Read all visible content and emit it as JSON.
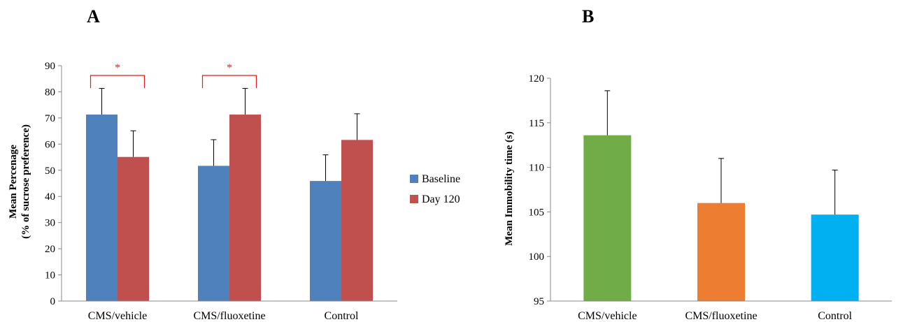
{
  "chart_data": [
    {
      "type": "bar",
      "panel_label": "A",
      "categories": [
        "CMS/vehicle",
        "CMS/fluoxetine",
        "Control"
      ],
      "series": [
        {
          "name": "Baseline",
          "color": "#4f81bd",
          "values": [
            71.3,
            51.7,
            45.9
          ],
          "errors": [
            10,
            10,
            10
          ]
        },
        {
          "name": "Day 120",
          "color": "#c0504d",
          "values": [
            55.1,
            71.3,
            61.6
          ],
          "errors": [
            10,
            10,
            10
          ]
        }
      ],
      "ylabel_line1": "Mean Percenage",
      "ylabel_line2": "(% of sucrose preference)",
      "ylim": [
        0,
        90
      ],
      "yticks": [
        0,
        10,
        20,
        30,
        40,
        50,
        60,
        70,
        80,
        90
      ],
      "legend_position": "right",
      "significance": [
        {
          "category_index": 0,
          "label": "*",
          "color": "#e41a1c"
        },
        {
          "category_index": 1,
          "label": "*",
          "color": "#e41a1c"
        }
      ]
    },
    {
      "type": "bar",
      "panel_label": "B",
      "categories": [
        "CMS/vehicle",
        "CMS/fluoxetine",
        "Control"
      ],
      "values": [
        113.6,
        106.0,
        104.7
      ],
      "errors": [
        5,
        5,
        5
      ],
      "colors": [
        "#70ad47",
        "#ed7d31",
        "#00b0f0"
      ],
      "ylabel": "Mean Immobility time (s)",
      "ylim": [
        95,
        120
      ],
      "yticks": [
        95,
        100,
        105,
        110,
        115,
        120
      ]
    }
  ]
}
